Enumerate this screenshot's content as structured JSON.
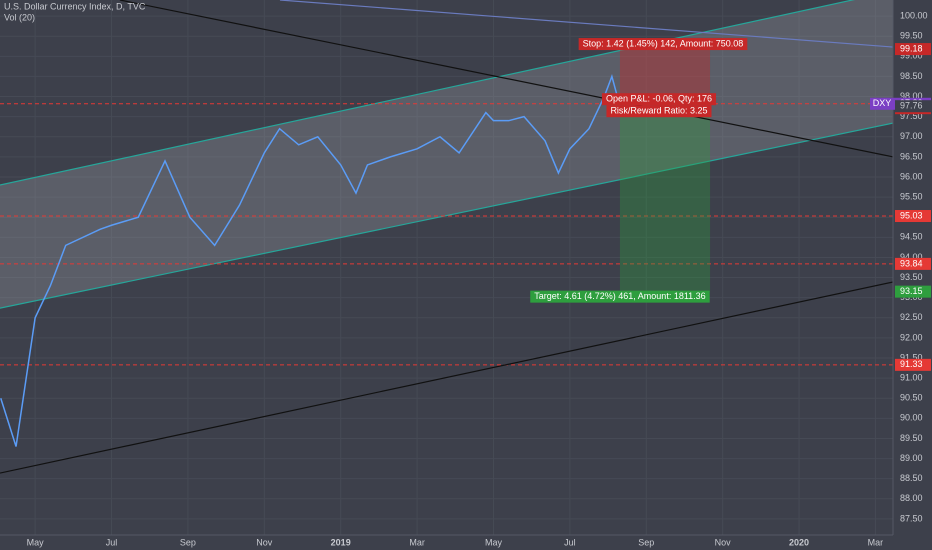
{
  "chart_data": {
    "type": "line",
    "title": "U.S. Dollar Currency Index, D, TVC",
    "subtitle": "Vol (20)",
    "symbol": "DXY",
    "series": [
      {
        "color": "#5b9cf6",
        "x": [
          -0.9,
          -0.5,
          0,
          0.4,
          0.8,
          1.7,
          2,
          2.7,
          3.4,
          4.05,
          4.7,
          5.35,
          6,
          6.4,
          6.9,
          7.4,
          8,
          8.4,
          8.7,
          9.3,
          10,
          10.6,
          11.1,
          11.8,
          12,
          12.4,
          12.8,
          13.35,
          13.7,
          14,
          14.5,
          14.9,
          15.1,
          15.3
        ],
        "values": [
          90.5,
          89.3,
          92.5,
          93.3,
          94.3,
          94.7,
          94.8,
          95.0,
          96.4,
          95.0,
          94.3,
          95.3,
          96.6,
          97.2,
          96.8,
          97.0,
          96.3,
          95.6,
          96.3,
          96.5,
          96.7,
          97.0,
          96.6,
          97.6,
          97.4,
          97.4,
          97.5,
          96.9,
          96.1,
          96.7,
          97.2,
          98.0,
          98.5,
          97.8
        ]
      }
    ],
    "xlim": [
      -0.92,
      22.46
    ],
    "ylim": [
      87.1,
      100.4
    ],
    "xticks": [
      {
        "value": 0,
        "label": "May"
      },
      {
        "value": 2,
        "label": "Jul"
      },
      {
        "value": 4,
        "label": "Sep"
      },
      {
        "value": 6,
        "label": "Nov"
      },
      {
        "value": 8,
        "label": "2019"
      },
      {
        "value": 10,
        "label": "Mar"
      },
      {
        "value": 12,
        "label": "May"
      },
      {
        "value": 14,
        "label": "Jul"
      },
      {
        "value": 16,
        "label": "Sep"
      },
      {
        "value": 18,
        "label": "Nov"
      },
      {
        "value": 20,
        "label": "2020"
      },
      {
        "value": 22,
        "label": "Mar"
      }
    ],
    "yticks": [
      {
        "value": 87.5,
        "label": "87.50"
      },
      {
        "value": 88,
        "label": "88.00"
      },
      {
        "value": 88.5,
        "label": "88.50"
      },
      {
        "value": 89,
        "label": "89.00"
      },
      {
        "value": 89.5,
        "label": "89.50"
      },
      {
        "value": 90,
        "label": "90.00"
      },
      {
        "value": 90.5,
        "label": "90.50"
      },
      {
        "value": 91,
        "label": "91.00"
      },
      {
        "value": 91.5,
        "label": "91.50"
      },
      {
        "value": 92,
        "label": "92.00"
      },
      {
        "value": 92.5,
        "label": "92.50"
      },
      {
        "value": 93,
        "label": "93.00"
      },
      {
        "value": 93.5,
        "label": "93.50"
      },
      {
        "value": 94,
        "label": "94.00"
      },
      {
        "value": 94.5,
        "label": "94.50"
      },
      {
        "value": 95,
        "label": "95.00"
      },
      {
        "value": 95.5,
        "label": "95.50"
      },
      {
        "value": 96,
        "label": "96.00"
      },
      {
        "value": 96.5,
        "label": "96.50"
      },
      {
        "value": 97,
        "label": "97.00"
      },
      {
        "value": 97.5,
        "label": "97.50"
      },
      {
        "value": 98,
        "label": "98.00"
      },
      {
        "value": 98.5,
        "label": "98.50"
      },
      {
        "value": 99,
        "label": "99.00"
      },
      {
        "value": 99.5,
        "label": "99.50"
      },
      {
        "value": 100,
        "label": "100.00"
      }
    ],
    "channel": {
      "color": "#26a69a",
      "fill": "#9598a1",
      "upper": {
        "x": [
          -0.92,
          22.46
        ],
        "y": [
          95.8,
          100.62
        ]
      },
      "lower": {
        "x": [
          -0.92,
          22.46
        ],
        "y": [
          92.74,
          97.34
        ]
      }
    },
    "trendlines": [
      {
        "color": "#111111",
        "x": [
          2.22,
          22.46
        ],
        "y": [
          100.4,
          96.5
        ]
      },
      {
        "color": "#111111",
        "x": [
          -0.92,
          22.46
        ],
        "y": [
          88.64,
          93.39
        ]
      },
      {
        "color": "#6a7bbf",
        "x": [
          6.41,
          22.46
        ],
        "y": [
          100.4,
          99.23
        ]
      }
    ],
    "levels": [
      {
        "value": 97.82,
        "color": "#e53935"
      },
      {
        "value": 95.03,
        "color": "#e53935"
      },
      {
        "value": 93.84,
        "color": "#e53935"
      },
      {
        "value": 91.33,
        "color": "#e53935"
      }
    ],
    "last_price": {
      "value": 97.82,
      "color": "#7b3fc4"
    },
    "extra_tag": {
      "value": 97.71,
      "color": "#c62828"
    },
    "position": {
      "x": [
        15.31,
        17.67
      ],
      "entry": 97.76,
      "stop": 99.18,
      "target": 93.15,
      "stop_color": "#c62828",
      "target_color": "#2e9e3e",
      "stop_label": "Stop: 1.42 (1.45%) 142, Amount: 750.08",
      "pnl_label": "Open P&L: -0.06, Qty: 176",
      "rr_label": "Risk/Reward Ratio: 3.25",
      "target_label": "Target: 4.61 (4.72%) 461, Amount: 1811.36"
    }
  }
}
